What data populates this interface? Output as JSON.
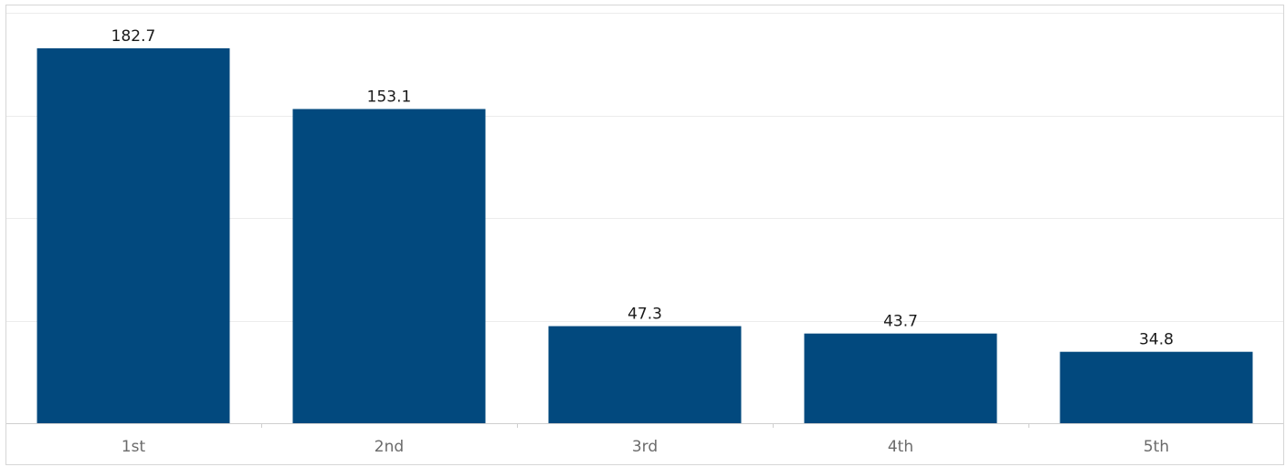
{
  "chart_data": {
    "type": "bar",
    "categories": [
      "1st",
      "2nd",
      "3rd",
      "4th",
      "5th"
    ],
    "values": [
      182.7,
      153.1,
      47.3,
      43.7,
      34.8
    ],
    "title": "",
    "xlabel": "",
    "ylabel": "",
    "ylim": [
      0,
      200
    ],
    "gridlines": [
      50,
      100,
      150,
      200
    ],
    "grid": true,
    "show_value_labels": true,
    "bar_color": "#02497e"
  }
}
